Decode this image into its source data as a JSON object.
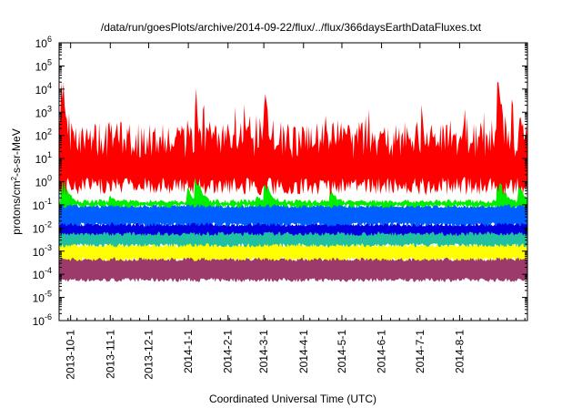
{
  "chart_data": {
    "type": "area",
    "title": "/data/run/goesPlots/archive/2014-09-22/flux/../flux/366daysEarthDataFluxes.txt",
    "xlabel": "Coordinated Universal Time (UTC)",
    "ylabel_base": "protons/cm",
    "ylabel_sup": "2",
    "ylabel_rest": "-s-sr-MeV",
    "yscale": "log",
    "ylim_exp": [
      -6,
      6
    ],
    "y_tick_base": "10",
    "y_ticks_exp": [
      "-6",
      "-5",
      "-4",
      "-3",
      "-2",
      "-1",
      "0",
      "1",
      "2",
      "3",
      "4",
      "5",
      "6"
    ],
    "x_range": [
      "2013-09-22",
      "2014-09-22"
    ],
    "x_tick_labels": [
      "2013-10-1",
      "2013-11-1",
      "2013-12-1",
      "2014-1-1",
      "2014-2-1",
      "2014-3-1",
      "2014-4-1",
      "2014-5-1",
      "2014-6-1",
      "2014-7-1",
      "2014-8-1"
    ],
    "x_tick_days": [
      9,
      40,
      70,
      101,
      132,
      160,
      191,
      221,
      252,
      282,
      313
    ],
    "x_total_days": 366,
    "grid": false,
    "legend": "none",
    "series_colors": [
      "#9b3a6b",
      "#ffff00",
      "#20c0a0",
      "#0000e0",
      "#0060ff",
      "#00ee00",
      "#ff0000"
    ],
    "series_bands_exp": [
      [
        -4.25,
        -3.35
      ],
      [
        -3.35,
        -2.75
      ],
      [
        -2.75,
        -2.1
      ],
      [
        -2.25,
        -1.85
      ],
      [
        -1.85,
        -1.05
      ],
      [
        -1.05,
        -0.85
      ],
      [
        -0.6,
        2.6
      ]
    ],
    "events": [
      {
        "day": 2,
        "peak_exp": 4.15
      },
      {
        "day": 40,
        "peak_exp": 2.3
      },
      {
        "day": 101,
        "peak_exp": 2.6
      },
      {
        "day": 107,
        "peak_exp": 3.7
      },
      {
        "day": 155,
        "peak_exp": 2.3
      },
      {
        "day": 161,
        "peak_exp": 3.3
      },
      {
        "day": 212,
        "peak_exp": 2.7
      },
      {
        "day": 343,
        "peak_exp": 4.2
      },
      {
        "day": 360,
        "peak_exp": 2.8
      }
    ]
  }
}
